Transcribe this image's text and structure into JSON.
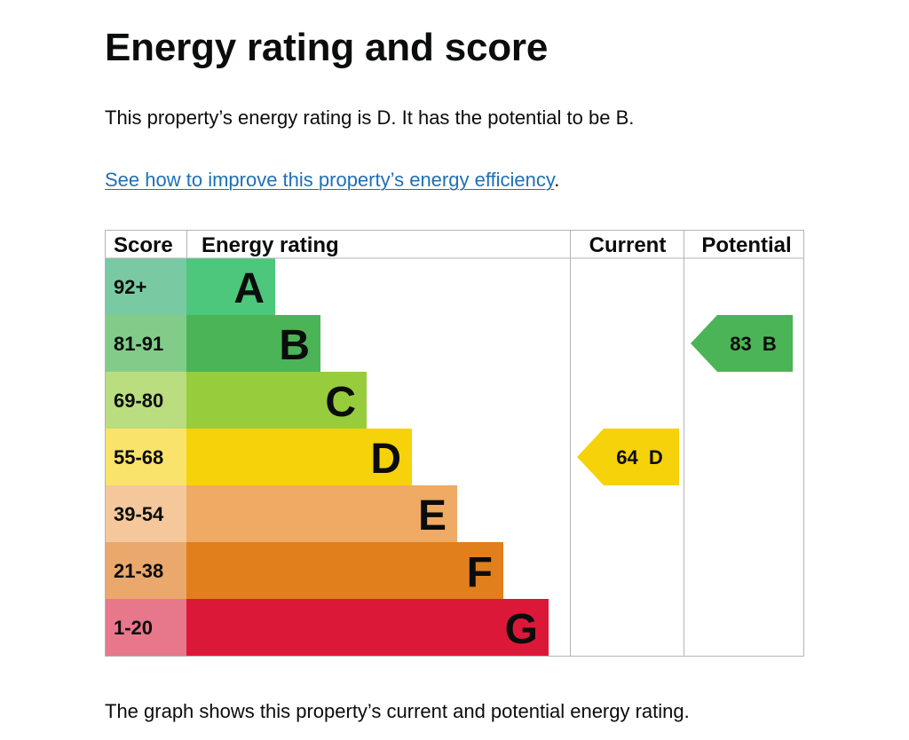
{
  "page": {
    "title": "Energy rating and score",
    "summary": "This property’s energy rating is D. It has the potential to be B.",
    "improve_link": "See how to improve this property’s energy efficiency",
    "improve_link_suffix": ".",
    "footer": "The graph shows this property’s current and potential energy rating."
  },
  "chart_data": {
    "type": "bar",
    "headers": {
      "score": "Score",
      "rating": "Energy rating",
      "current": "Current",
      "potential": "Potential"
    },
    "bands": [
      {
        "score": "92+",
        "letter": "A",
        "color": "#4cc77c",
        "score_bg": "#79c9a3"
      },
      {
        "score": "81-91",
        "letter": "B",
        "color": "#4bb456",
        "score_bg": "#81cc89"
      },
      {
        "score": "69-80",
        "letter": "C",
        "color": "#97cc3c",
        "score_bg": "#b9dd7f"
      },
      {
        "score": "55-68",
        "letter": "D",
        "color": "#f6d20a",
        "score_bg": "#f9e36b"
      },
      {
        "score": "39-54",
        "letter": "E",
        "color": "#efaa64",
        "score_bg": "#f4c89b"
      },
      {
        "score": "21-38",
        "letter": "F",
        "color": "#e07f1c",
        "score_bg": "#eaa86c"
      },
      {
        "score": "1-20",
        "letter": "G",
        "color": "#dc1839",
        "score_bg": "#e7778a"
      }
    ],
    "current": {
      "value": 64,
      "letter": "D",
      "label": "64  D",
      "band": 3,
      "color": "#f6d20a"
    },
    "potential": {
      "value": 83,
      "letter": "B",
      "label": "83  B",
      "band": 1,
      "color": "#4bb456"
    }
  }
}
